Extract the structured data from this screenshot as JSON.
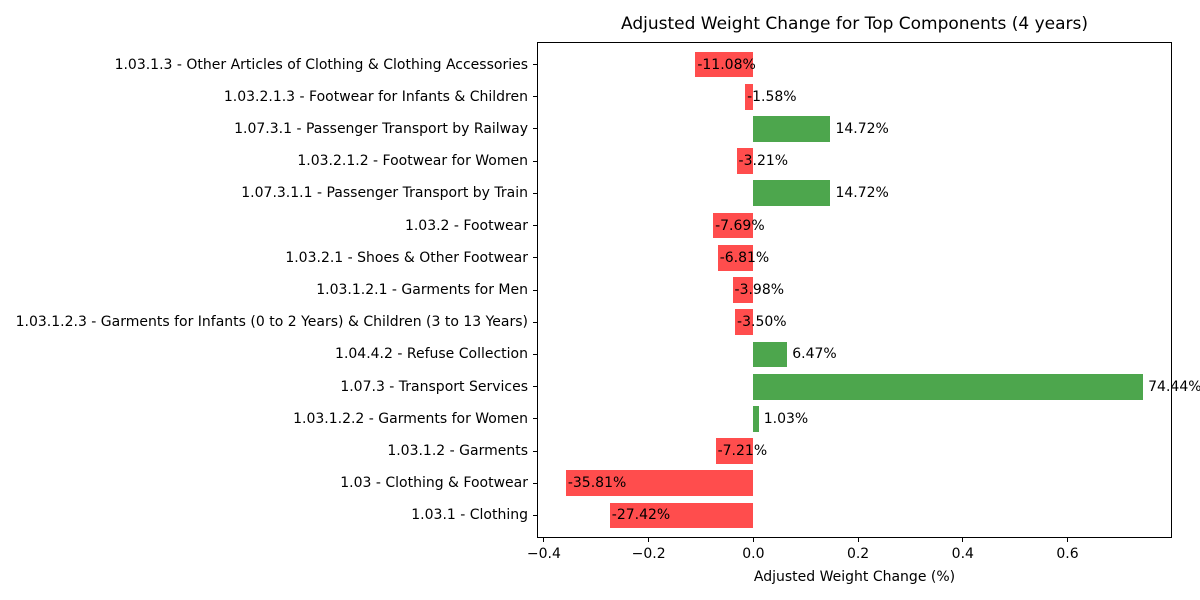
{
  "chart_data": {
    "type": "bar",
    "orientation": "horizontal",
    "title": "Adjusted Weight Change for Top Components (4 years)",
    "xlabel": "Adjusted Weight Change (%)",
    "ylabel": "",
    "grid": false,
    "legend": "none",
    "xlim": [
      -0.4132,
      0.7995
    ],
    "xticks": [
      -0.4,
      -0.2,
      0.0,
      0.2,
      0.4,
      0.6
    ],
    "xtick_labels": [
      "−0.4",
      "−0.2",
      "0.0",
      "0.2",
      "0.4",
      "0.6"
    ],
    "colors": {
      "positive": "#4da64d",
      "negative": "#ff4d4d"
    },
    "bars": [
      {
        "category": "1.03.1.3 - Other Articles of Clothing & Clothing Accessories",
        "value": -0.1108,
        "label": "-11.08%"
      },
      {
        "category": "1.03.2.1.3 - Footwear for Infants & Children",
        "value": -0.0158,
        "label": "-1.58%"
      },
      {
        "category": "1.07.3.1 - Passenger Transport by Railway",
        "value": 0.1472,
        "label": "14.72%"
      },
      {
        "category": "1.03.2.1.2 - Footwear for Women",
        "value": -0.0321,
        "label": "-3.21%"
      },
      {
        "category": "1.07.3.1.1 - Passenger Transport by Train",
        "value": 0.1472,
        "label": "14.72%"
      },
      {
        "category": "1.03.2 - Footwear",
        "value": -0.0769,
        "label": "-7.69%"
      },
      {
        "category": "1.03.2.1 - Shoes & Other Footwear",
        "value": -0.0681,
        "label": "-6.81%"
      },
      {
        "category": "1.03.1.2.1 - Garments for Men",
        "value": -0.0398,
        "label": "-3.98%"
      },
      {
        "category": "1.03.1.2.3 - Garments for Infants (0 to 2 Years) & Children (3 to 13 Years)",
        "value": -0.035,
        "label": "-3.50%"
      },
      {
        "category": "1.04.4.2 - Refuse Collection",
        "value": 0.0647,
        "label": "6.47%"
      },
      {
        "category": "1.07.3 - Transport Services",
        "value": 0.7444,
        "label": "74.44%"
      },
      {
        "category": "1.03.1.2.2 - Garments for Women",
        "value": 0.0103,
        "label": "1.03%"
      },
      {
        "category": "1.03.1.2 - Garments",
        "value": -0.0721,
        "label": "-7.21%"
      },
      {
        "category": "1.03 - Clothing & Footwear",
        "value": -0.3581,
        "label": "-35.81%"
      },
      {
        "category": "1.03.1 - Clothing",
        "value": -0.2742,
        "label": "-27.42%"
      }
    ]
  }
}
